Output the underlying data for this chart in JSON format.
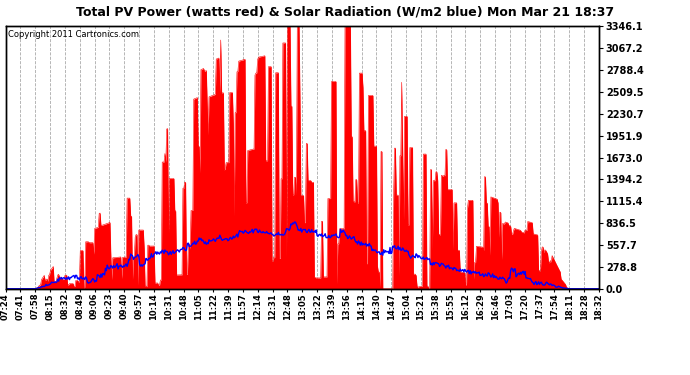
{
  "title": "Total PV Power (watts red) & Solar Radiation (W/m2 blue) Mon Mar 21 18:37",
  "copyright": "Copyright 2011 Cartronics.com",
  "ylabel_right_ticks": [
    0.0,
    278.8,
    557.7,
    836.5,
    1115.4,
    1394.2,
    1673.0,
    1951.9,
    2230.7,
    2509.5,
    2788.4,
    3067.2,
    3346.1
  ],
  "ymax": 3346.1,
  "ymin": 0.0,
  "bg_color": "#ffffff",
  "plot_bg_color": "#ffffff",
  "grid_color": "#aaaaaa",
  "red_fill_color": "#ff0000",
  "blue_line_color": "#0000ff",
  "x_tick_labels": [
    "07:24",
    "07:41",
    "07:58",
    "08:15",
    "08:32",
    "08:49",
    "09:06",
    "09:23",
    "09:40",
    "09:57",
    "10:14",
    "10:31",
    "10:48",
    "11:05",
    "11:22",
    "11:39",
    "11:57",
    "12:14",
    "12:31",
    "12:48",
    "13:05",
    "13:22",
    "13:39",
    "13:56",
    "14:13",
    "14:30",
    "14:47",
    "15:04",
    "15:21",
    "15:38",
    "15:55",
    "16:12",
    "16:29",
    "16:46",
    "17:03",
    "17:20",
    "17:37",
    "17:54",
    "18:11",
    "18:28",
    "18:32"
  ],
  "num_points": 660
}
